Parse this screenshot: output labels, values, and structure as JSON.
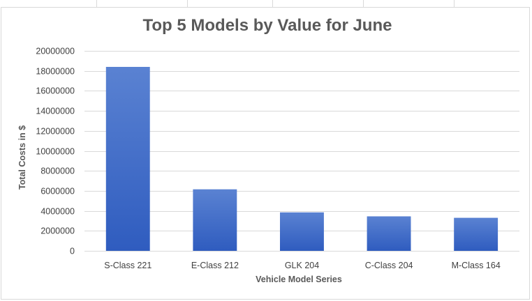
{
  "chart_data": {
    "type": "bar",
    "title": "Top 5 Models by Value for June",
    "xlabel": "Vehicle Model Series",
    "ylabel": "Total Costs in $",
    "categories": [
      "S-Class 221",
      "E-Class 212",
      "GLK 204",
      "C-Class 204",
      "M-Class 164"
    ],
    "values": [
      18400000,
      6150000,
      3850000,
      3450000,
      3300000
    ],
    "ylim": [
      0,
      20000000
    ],
    "yticks": [
      "0",
      "2000000",
      "4000000",
      "6000000",
      "8000000",
      "10000000",
      "12000000",
      "14000000",
      "16000000",
      "18000000",
      "20000000"
    ],
    "grid": true,
    "legend": "none",
    "bar_color_top": "#5a82d2",
    "bar_color_bottom": "#2f5cbf",
    "gridline_color": "#d9d9d9",
    "text_color": "#595959"
  }
}
